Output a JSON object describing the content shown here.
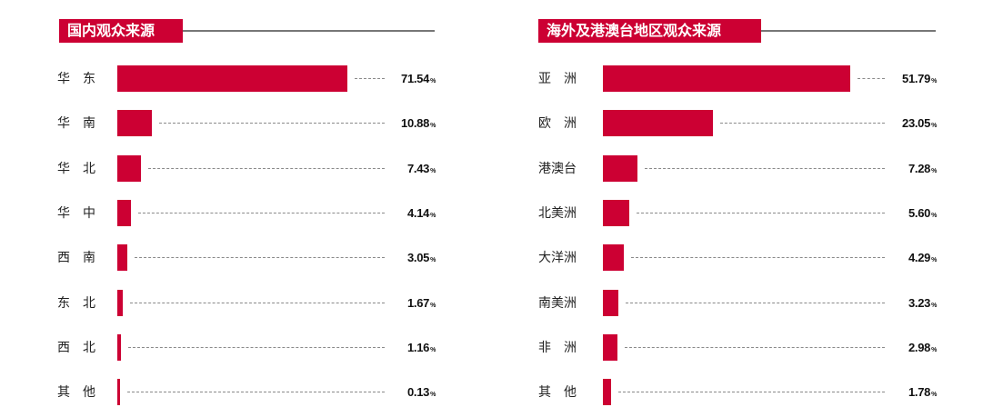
{
  "colors": {
    "bar": "#cc0033",
    "title_bg": "#cc0033",
    "title_text": "#ffffff",
    "rule": "#777777",
    "leader": "#8a8a8a"
  },
  "domestic": {
    "title": "国内观众来源",
    "rows": [
      {
        "label": "华　东",
        "value": "71.54",
        "unit": "%"
      },
      {
        "label": "华　南",
        "value": "10.88",
        "unit": "%"
      },
      {
        "label": "华　北",
        "value": "7.43",
        "unit": "%"
      },
      {
        "label": "华　中",
        "value": "4.14",
        "unit": "%"
      },
      {
        "label": "西　南",
        "value": "3.05",
        "unit": "%"
      },
      {
        "label": "东　北",
        "value": "1.67",
        "unit": "%"
      },
      {
        "label": "西　北",
        "value": "1.16",
        "unit": "%"
      },
      {
        "label": "其　他",
        "value": "0.13",
        "unit": "%"
      }
    ]
  },
  "overseas": {
    "title": "海外及港澳台地区观众来源",
    "rows": [
      {
        "label": "亚　洲",
        "value": "51.79",
        "unit": "%"
      },
      {
        "label": "欧　洲",
        "value": "23.05",
        "unit": "%"
      },
      {
        "label": "港澳台",
        "value": "7.28",
        "unit": "%"
      },
      {
        "label": "北美洲",
        "value": "5.60",
        "unit": "%"
      },
      {
        "label": "大洋洲",
        "value": "4.29",
        "unit": "%"
      },
      {
        "label": "南美洲",
        "value": "3.23",
        "unit": "%"
      },
      {
        "label": "非　洲",
        "value": "2.98",
        "unit": "%"
      },
      {
        "label": "其　他",
        "value": "1.78",
        "unit": "%"
      }
    ]
  },
  "chart_data": [
    {
      "type": "bar",
      "orientation": "horizontal",
      "title": "国内观众来源",
      "categories": [
        "华东",
        "华南",
        "华北",
        "华中",
        "西南",
        "东北",
        "西北",
        "其他"
      ],
      "values": [
        71.54,
        10.88,
        7.43,
        4.14,
        3.05,
        1.67,
        1.16,
        0.13
      ],
      "unit": "%",
      "xlabel": "",
      "ylabel": "",
      "grid": false,
      "legend": null,
      "data_labels": true
    },
    {
      "type": "bar",
      "orientation": "horizontal",
      "title": "海外及港澳台地区观众来源",
      "categories": [
        "亚洲",
        "欧洲",
        "港澳台",
        "北美洲",
        "大洋洲",
        "南美洲",
        "非洲",
        "其他"
      ],
      "values": [
        51.79,
        23.05,
        7.28,
        5.6,
        4.29,
        3.23,
        2.98,
        1.78
      ],
      "unit": "%",
      "xlabel": "",
      "ylabel": "",
      "grid": false,
      "legend": null,
      "data_labels": true
    }
  ]
}
